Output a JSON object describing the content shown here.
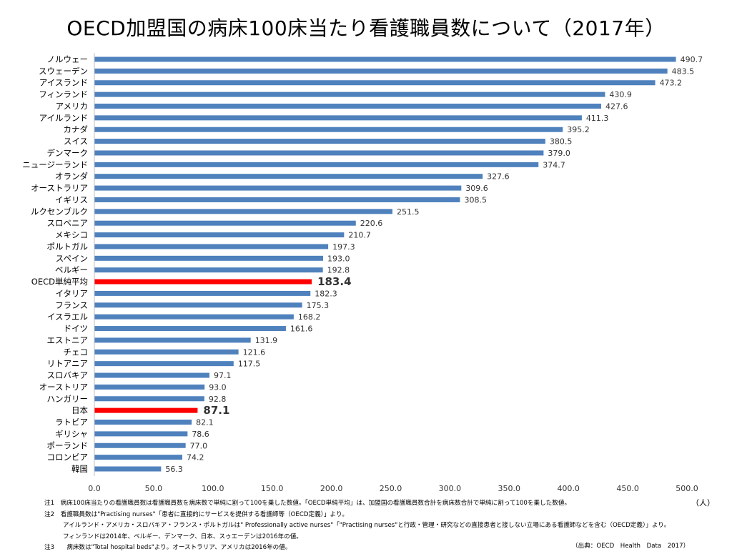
{
  "chart_data": {
    "type": "bar",
    "orientation": "horizontal",
    "title": "OECD加盟国の病床100床当たり看護職員数について（2017年）",
    "unit": "（人）",
    "xlim": [
      0,
      500
    ],
    "xticks": [
      "0.0",
      "50.0",
      "100.0",
      "150.0",
      "200.0",
      "250.0",
      "300.0",
      "350.0",
      "400.0",
      "450.0",
      "500.0"
    ],
    "grid": false,
    "colors": {
      "default": "#4f81bd",
      "highlight": "#ff0000"
    },
    "categories": [
      "ノルウェー",
      "スウェーデン",
      "アイスランド",
      "フィンランド",
      "アメリカ",
      "アイルランド",
      "カナダ",
      "スイス",
      "デンマーク",
      "ニュージーランド",
      "オランダ",
      "オーストラリア",
      "イギリス",
      "ルクセンブルク",
      "スロベニア",
      "メキシコ",
      "ポルトガル",
      "スペイン",
      "ベルギー",
      "OECD単純平均",
      "イタリア",
      "フランス",
      "イスラエル",
      "ドイツ",
      "エストニア",
      "チェコ",
      "リトアニア",
      "スロバキア",
      "オーストリア",
      "ハンガリー",
      "日本",
      "ラトビア",
      "ギリシャ",
      "ポーランド",
      "コロンビア",
      "韓国"
    ],
    "values": [
      490.7,
      483.5,
      473.2,
      430.9,
      427.6,
      411.3,
      395.2,
      380.5,
      379.0,
      374.7,
      327.6,
      309.6,
      308.5,
      251.5,
      220.6,
      210.7,
      197.3,
      193.0,
      192.8,
      183.4,
      182.3,
      175.3,
      168.2,
      161.6,
      131.9,
      121.6,
      117.5,
      97.1,
      93.0,
      92.8,
      87.1,
      82.1,
      78.6,
      77.0,
      74.2,
      56.3
    ],
    "highlighted": [
      "OECD単純平均",
      "日本"
    ]
  },
  "notes": [
    "注1　病床100床当たりの看護職員数は看護職員数を病床数で単純に割って100を乗した数値。「OECD単純平均」は、加盟国の看護職員数合計を病床数合計で単純に割って100を乗した数値。",
    "注2　看護職員数は\"Practising nurses\"「患者に直接的にサービスを提供する看護師等（OECD定義）」より。",
    "アイルランド・アメリカ・スロバキア・フランス・ポルトガルは\" Professionally active nurses\"「\"Practising nurses\"と行政・管理・研究などの直接患者と接しない立場にある看護師などを含む（OECD定義）」より。",
    "フィンランドは2014年、ベルギー、デンマーク、日本、スゥエーデンは2016年の値。",
    "注3　　病床数は\"Total hospital beds\"より。オーストラリア、アメリカは2016年の値。"
  ],
  "source": "（出典：OECD　Health　Data　2017）"
}
